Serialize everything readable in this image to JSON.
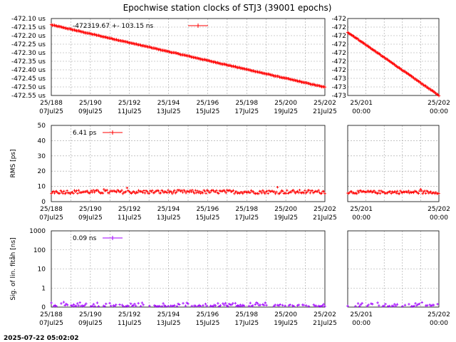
{
  "title": "Epochwise station clocks of STJ3 (39001 epochs)",
  "timestamp": "2025-07-22 05:02:02",
  "colors": {
    "red": "#ff0000",
    "purple": "#a000ff",
    "grid": "#a0a0a0",
    "frame": "#000000"
  },
  "x_ticks_main": [
    {
      "doy": "25/188",
      "date": "07Jul25"
    },
    {
      "doy": "25/190",
      "date": "09Jul25"
    },
    {
      "doy": "25/192",
      "date": "11Jul25"
    },
    {
      "doy": "25/194",
      "date": "13Jul25"
    },
    {
      "doy": "25/196",
      "date": "15Jul25"
    },
    {
      "doy": "25/198",
      "date": "17Jul25"
    },
    {
      "doy": "25/200",
      "date": "19Jul25"
    },
    {
      "doy": "25/202",
      "date": "21Jul25"
    }
  ],
  "x_ticks_zoom": [
    {
      "doy": "25/201",
      "date": "00:00"
    },
    {
      "doy": "25/202",
      "date": "00:00"
    }
  ],
  "chart_data": [
    {
      "type": "scatter",
      "panel": "clock-main",
      "ylabel": "",
      "y_tick_labels": [
        "-472.10 us",
        "-472.15 us",
        "-472.20 us",
        "-472.25 us",
        "-472.30 us",
        "-472.35 us",
        "-472.40 us",
        "-472.45 us",
        "-472.50 us",
        "-472.55 us"
      ],
      "ylim": [
        -472.55,
        -472.1
      ],
      "xlim": [
        188,
        202
      ],
      "legend": {
        "label": "-472319.67 +-    103.15 ns",
        "position": "top-left"
      },
      "series": [
        {
          "color": "#ff0000",
          "x": [
            188,
            202
          ],
          "y": [
            -472.137,
            -472.502
          ]
        }
      ]
    },
    {
      "type": "scatter",
      "panel": "clock-zoom",
      "y_tick_labels": [
        "-472",
        "-472",
        "-472",
        "-472",
        "-472",
        "-472",
        "-472",
        "-473",
        "-473",
        "-473"
      ],
      "ylim": [
        -472.55,
        -472.1
      ],
      "xlim": [
        200.7,
        202.2
      ],
      "series": [
        {
          "color": "#ff0000",
          "x": [
            200.7,
            202.2
          ],
          "y": [
            -472.18,
            -472.55
          ]
        }
      ]
    },
    {
      "type": "scatter",
      "panel": "rms-main",
      "ylabel": "RMS [ps]",
      "y_tick_labels": [
        "50",
        "40",
        "30",
        "20",
        "10",
        "0"
      ],
      "ylim": [
        0,
        50
      ],
      "xlim": [
        188,
        202
      ],
      "legend": {
        "label": "6.41 ps",
        "position": "top-left"
      },
      "series": [
        {
          "color": "#ff0000",
          "mean": 6.41,
          "spread": 1.2
        }
      ]
    },
    {
      "type": "scatter",
      "panel": "rms-zoom",
      "y_tick_labels": [],
      "ylim": [
        0,
        50
      ],
      "xlim": [
        200.7,
        202.2
      ],
      "series": [
        {
          "color": "#ff0000",
          "mean": 6.2,
          "spread": 1.0
        }
      ]
    },
    {
      "type": "scatter",
      "panel": "sig-main",
      "ylabel": "Sig. of lin. fitåh [ns]",
      "y_tick_labels": [
        "1000",
        "100",
        "10",
        "1",
        "0"
      ],
      "yscale": "log",
      "xlim": [
        188,
        202
      ],
      "legend": {
        "label": "0.09 ns",
        "position": "top-left"
      },
      "series": [
        {
          "color": "#a000ff",
          "mean": 0.09
        }
      ]
    },
    {
      "type": "scatter",
      "panel": "sig-zoom",
      "y_tick_labels": [],
      "yscale": "log",
      "xlim": [
        200.7,
        202.2
      ],
      "series": [
        {
          "color": "#a000ff",
          "mean": 0.08
        }
      ]
    }
  ]
}
